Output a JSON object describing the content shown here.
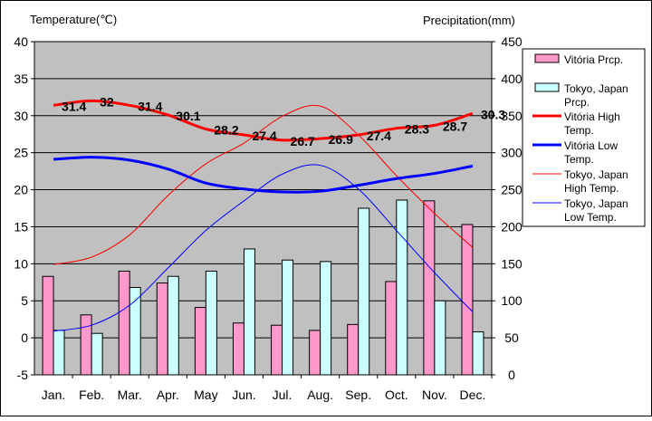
{
  "chart_data": {
    "type": "bar-line-combo",
    "title": "",
    "y_left_label": "Temperature(℃)",
    "y_right_label": "Precipitation(mm)",
    "y_left_lim": [
      -5,
      40
    ],
    "y_right_lim": [
      0,
      450
    ],
    "y_left_ticks": [
      "-5",
      "0",
      "5",
      "10",
      "15",
      "20",
      "25",
      "30",
      "35",
      "40"
    ],
    "y_right_ticks": [
      "0",
      "50",
      "100",
      "150",
      "200",
      "250",
      "300",
      "350",
      "400",
      "450"
    ],
    "categories": [
      "Jan.",
      "Feb.",
      "Mar.",
      "Apr.",
      "May",
      "Jun.",
      "Jul.",
      "Aug.",
      "Sep.",
      "Oct.",
      "Nov.",
      "Dec."
    ],
    "precip_series": [
      {
        "name": "Vitória Prcp.",
        "legend_lines": [
          "Vitória Prcp."
        ],
        "color": "#FF99CC",
        "values": [
          133,
          81,
          140,
          124,
          91,
          70,
          67,
          60,
          68,
          126,
          235,
          203
        ]
      },
      {
        "name": "Tokyo, Japan Prcp.",
        "legend_lines": [
          "Tokyo, Japan",
          "Prcp."
        ],
        "color": "#CCFFFF",
        "values": [
          60,
          56,
          118,
          133,
          140,
          170,
          155,
          153,
          225,
          236,
          100,
          58
        ]
      }
    ],
    "temp_series": [
      {
        "name": "Vitória High Temp.",
        "legend_lines": [
          "Vitória High",
          "Temp."
        ],
        "color": "#FF0000",
        "width": 3,
        "values": [
          31.4,
          32.0,
          31.4,
          30.1,
          28.2,
          27.4,
          26.7,
          26.9,
          27.4,
          28.3,
          28.7,
          30.3
        ],
        "labels": [
          "31.4",
          "32",
          "31.4",
          "30.1",
          "28.2",
          "27.4",
          "26.7",
          "26.9",
          "27.4",
          "28.3",
          "28.7",
          "30.3"
        ]
      },
      {
        "name": "Vitória Low Temp.",
        "legend_lines": [
          "Vitória Low",
          "Temp."
        ],
        "color": "#0000FF",
        "width": 3,
        "values": [
          24.1,
          24.4,
          24.0,
          22.8,
          20.9,
          20.1,
          19.7,
          19.8,
          20.6,
          21.5,
          22.2,
          23.2
        ]
      },
      {
        "name": "Tokyo, Japan High Temp.",
        "legend_lines": [
          "Tokyo, Japan",
          "High Temp."
        ],
        "color": "#FF0000",
        "width": 1,
        "values": [
          9.9,
          10.9,
          13.9,
          19.2,
          23.5,
          26.3,
          29.9,
          31.3,
          27.4,
          21.9,
          16.8,
          12.2
        ]
      },
      {
        "name": "Tokyo, Japan Low Temp.",
        "legend_lines": [
          "Tokyo, Japan",
          "Low Temp."
        ],
        "color": "#0000FF",
        "width": 1,
        "values": [
          0.9,
          1.7,
          4.4,
          9.4,
          14.5,
          18.5,
          22.1,
          23.3,
          20.1,
          14.5,
          8.8,
          3.5
        ]
      }
    ]
  }
}
